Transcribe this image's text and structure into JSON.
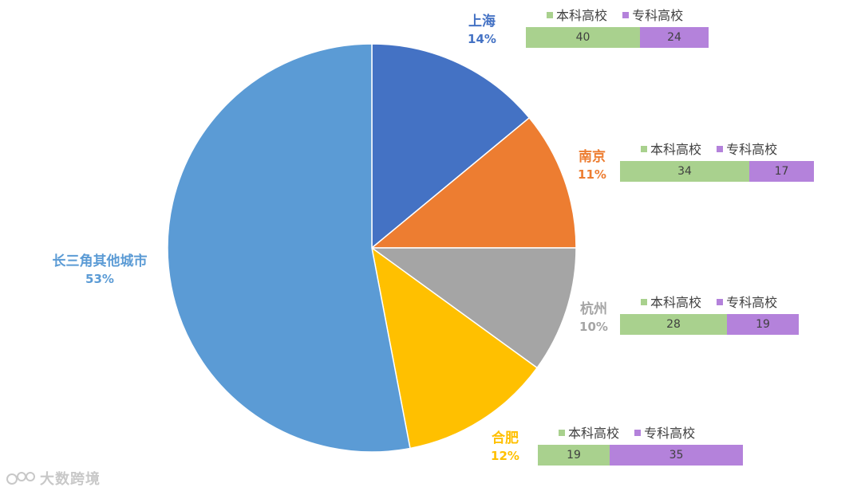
{
  "chart_data": {
    "type": "pie",
    "slices": [
      {
        "name": "上海",
        "pct_label": "14%",
        "value": 14,
        "color": "#4472C4"
      },
      {
        "name": "南京",
        "pct_label": "11%",
        "value": 11,
        "color": "#ED7D31"
      },
      {
        "name": "杭州",
        "pct_label": "10%",
        "value": 10,
        "color": "#A5A5A5"
      },
      {
        "name": "合肥",
        "pct_label": "12%",
        "value": 12,
        "color": "#FFC000"
      },
      {
        "name": "长三角其他城市",
        "pct_label": "53%",
        "value": 53,
        "color": "#5B9BD5"
      }
    ],
    "sub_bars": [
      {
        "city": "上海",
        "values": [
          40,
          24
        ]
      },
      {
        "city": "南京",
        "values": [
          34,
          17
        ]
      },
      {
        "city": "杭州",
        "values": [
          28,
          19
        ]
      },
      {
        "city": "合肥",
        "values": [
          19,
          35
        ]
      }
    ],
    "sub_series": [
      {
        "name": "本科高校",
        "color": "#A9D18E"
      },
      {
        "name": "专科高校",
        "color": "#B482DB"
      }
    ]
  },
  "watermark": {
    "text": "大数跨境"
  }
}
